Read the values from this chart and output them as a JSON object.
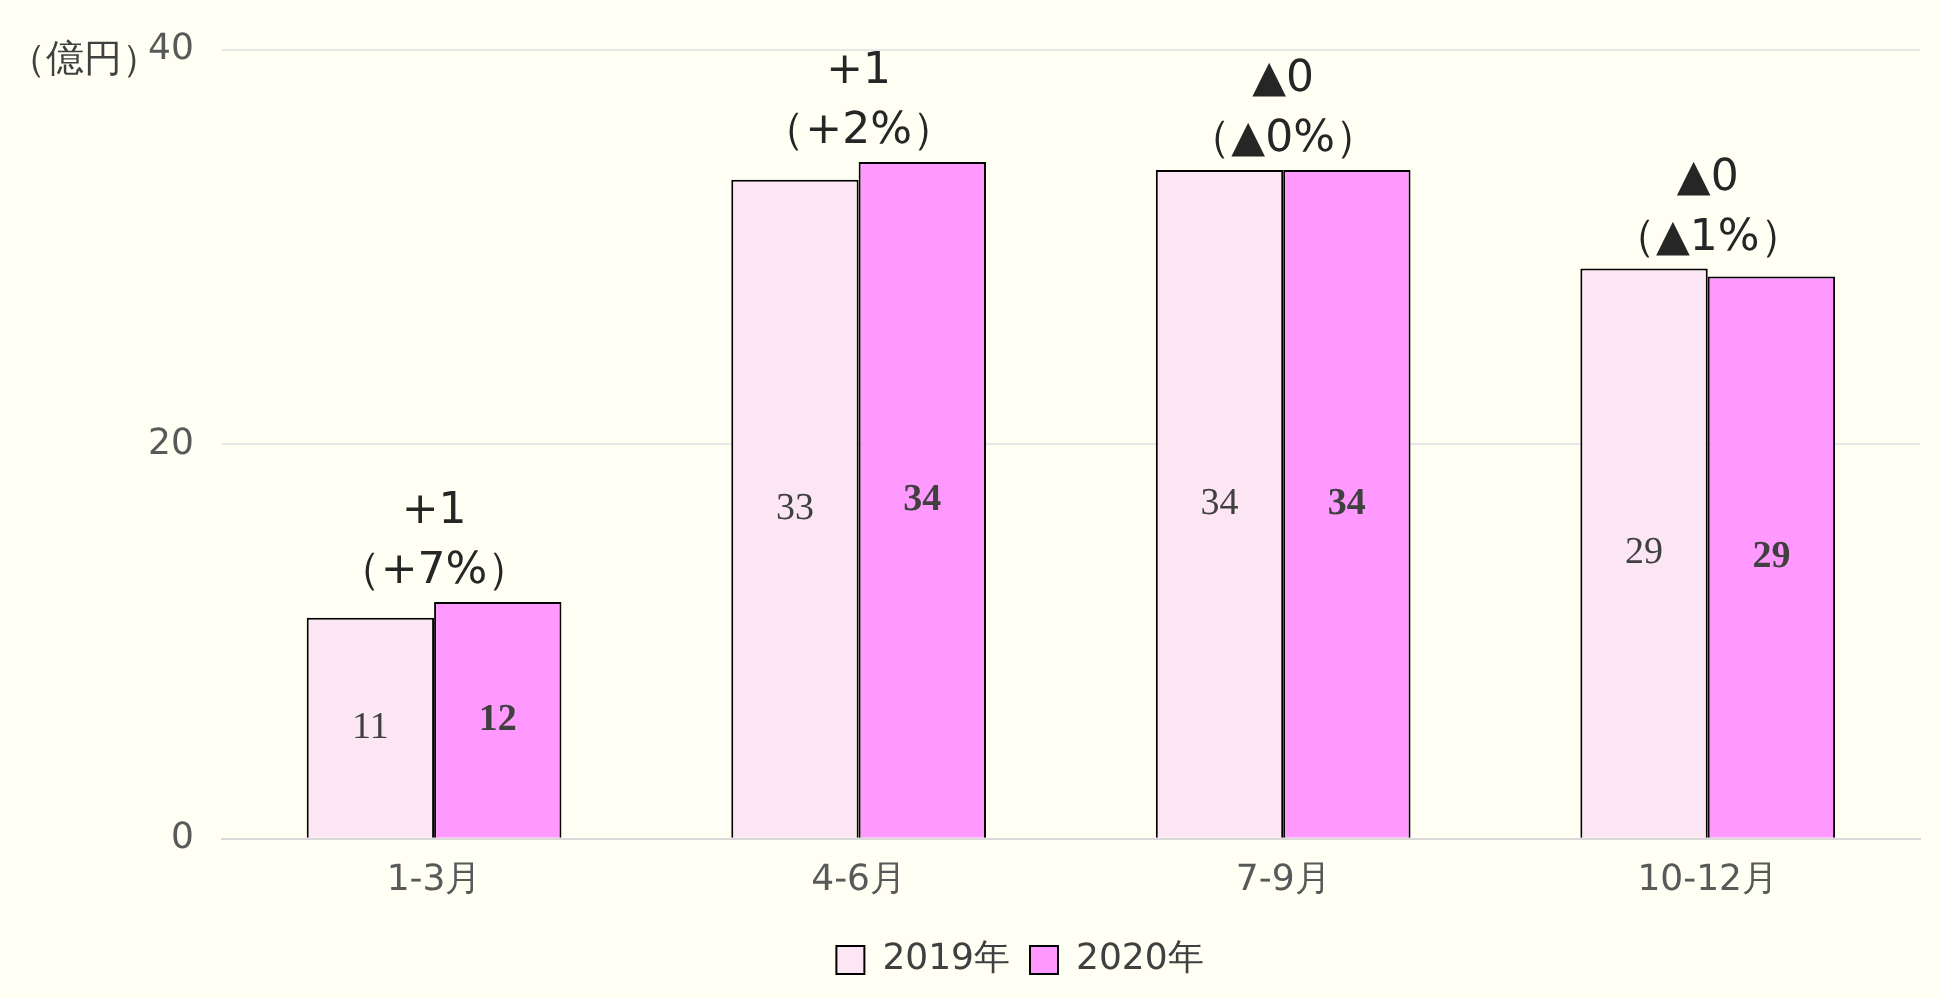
{
  "chart_data": {
    "type": "bar",
    "ylabel": "（億円）",
    "categories": [
      "1-3月",
      "4-6月",
      "7-9月",
      "10-12月"
    ],
    "series": [
      {
        "name": "2019年",
        "color": "#fde6f4",
        "values": [
          11.2,
          33.4,
          33.9,
          28.9
        ],
        "value_labels": [
          "11",
          "33",
          "34",
          "29"
        ]
      },
      {
        "name": "2020年",
        "color": "#ff99ff",
        "values": [
          12.0,
          34.3,
          33.9,
          28.5
        ],
        "value_labels": [
          "12",
          "34",
          "34",
          "29"
        ]
      }
    ],
    "ylim": [
      0,
      40
    ],
    "yticks": [
      0,
      20,
      40
    ],
    "grid": "y",
    "legend": "bottom",
    "annotations": [
      {
        "text": "+1\n（+7%）",
        "x": "1-3月",
        "y": 12.0
      },
      {
        "text": "+1\n（+2%）",
        "x": "4-6月",
        "y": 34.3
      },
      {
        "text": "▲0\n（▲0%）",
        "x": "7-9月",
        "y": 33.9
      },
      {
        "text": "▲0\n（▲1%）",
        "x": "10-12月",
        "y": 28.9
      }
    ]
  }
}
